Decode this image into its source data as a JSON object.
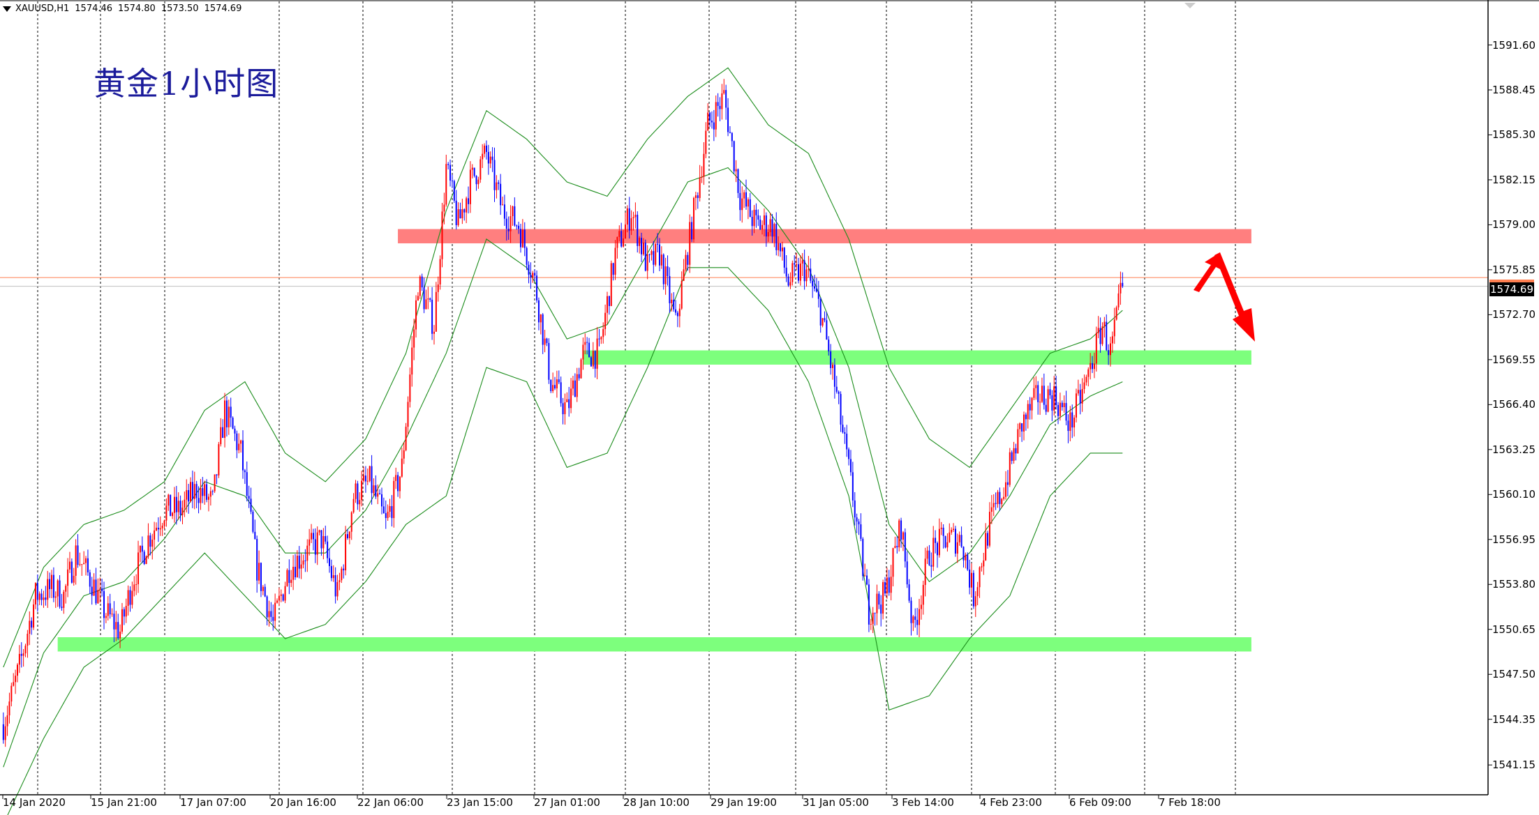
{
  "header": {
    "symbol": "XAUUSD,H1",
    "open": "1574.46",
    "high": "1574.80",
    "low": "1573.50",
    "close": "1574.69"
  },
  "title": "黄金1小时图",
  "current_price_label": "1574.69",
  "colors": {
    "bull_candle": "#ff0000",
    "bear_candle": "#0000ff",
    "bollinger": "#1a8c1a",
    "resistance_zone": "#ff7f7f",
    "support_zone": "#7dff7d",
    "arrow": "#ff0000",
    "grid": "#000000",
    "background": "#ffffff"
  },
  "chart_data": {
    "type": "candlestick",
    "symbol": "XAUUSD",
    "timeframe": "H1",
    "y_axis": {
      "ylim": [
        1539.7,
        1594.2
      ],
      "tick_labels": [
        "1591.60",
        "1588.45",
        "1585.30",
        "1582.15",
        "1579.00",
        "1575.85",
        "1572.70",
        "1569.55",
        "1566.40",
        "1563.25",
        "1560.10",
        "1556.95",
        "1553.80",
        "1550.65",
        "1547.50",
        "1544.35",
        "1541.15"
      ]
    },
    "x_axis": {
      "tick_labels": [
        "14 Jan 2020",
        "15 Jan 21:00",
        "17 Jan 07:00",
        "20 Jan 16:00",
        "22 Jan 06:00",
        "23 Jan 15:00",
        "27 Jan 01:00",
        "28 Jan 10:00",
        "29 Jan 19:00",
        "31 Jan 05:00",
        "3 Feb 14:00",
        "4 Feb 23:00",
        "6 Feb 09:00",
        "7 Feb 18:00"
      ]
    },
    "grid": "vertical-dashed",
    "indicators": [
      "Bollinger Bands"
    ],
    "price_path": [
      [
        0,
        1544
      ],
      [
        8,
        1548
      ],
      [
        16,
        1553
      ],
      [
        24,
        1553.5
      ],
      [
        30,
        1553
      ],
      [
        36,
        1556
      ],
      [
        44,
        1554
      ],
      [
        50,
        1552
      ],
      [
        58,
        1550.5
      ],
      [
        64,
        1554
      ],
      [
        72,
        1557
      ],
      [
        80,
        1559
      ],
      [
        88,
        1559
      ],
      [
        96,
        1560.5
      ],
      [
        104,
        1559.5
      ],
      [
        110,
        1566
      ],
      [
        118,
        1563
      ],
      [
        126,
        1555
      ],
      [
        134,
        1551
      ],
      [
        142,
        1555
      ],
      [
        150,
        1556
      ],
      [
        158,
        1557
      ],
      [
        166,
        1553
      ],
      [
        174,
        1560
      ],
      [
        182,
        1561
      ],
      [
        190,
        1558
      ],
      [
        198,
        1562
      ],
      [
        206,
        1575
      ],
      [
        214,
        1572
      ],
      [
        220,
        1583
      ],
      [
        226,
        1579
      ],
      [
        232,
        1582
      ],
      [
        240,
        1584
      ],
      [
        248,
        1580
      ],
      [
        256,
        1579
      ],
      [
        264,
        1575
      ],
      [
        272,
        1568
      ],
      [
        280,
        1566
      ],
      [
        288,
        1570
      ],
      [
        296,
        1570
      ],
      [
        304,
        1577
      ],
      [
        312,
        1580
      ],
      [
        320,
        1576
      ],
      [
        326,
        1577
      ],
      [
        334,
        1572
      ],
      [
        342,
        1579
      ],
      [
        350,
        1586
      ],
      [
        358,
        1588
      ],
      [
        366,
        1581
      ],
      [
        374,
        1579
      ],
      [
        382,
        1579
      ],
      [
        390,
        1575
      ],
      [
        398,
        1576
      ],
      [
        406,
        1573
      ],
      [
        414,
        1567
      ],
      [
        422,
        1560
      ],
      [
        430,
        1552
      ],
      [
        438,
        1553
      ],
      [
        446,
        1558
      ],
      [
        452,
        1550.5
      ],
      [
        460,
        1556
      ],
      [
        468,
        1557
      ],
      [
        476,
        1557
      ],
      [
        482,
        1553
      ],
      [
        490,
        1558
      ],
      [
        498,
        1561
      ],
      [
        506,
        1565
      ],
      [
        514,
        1567
      ],
      [
        522,
        1567
      ],
      [
        530,
        1565
      ],
      [
        538,
        1568
      ],
      [
        546,
        1572
      ],
      [
        550,
        1570
      ],
      [
        556,
        1574.7
      ]
    ],
    "bollinger_mid": [
      [
        0,
        1541
      ],
      [
        20,
        1549
      ],
      [
        40,
        1553
      ],
      [
        60,
        1554
      ],
      [
        80,
        1557
      ],
      [
        100,
        1561
      ],
      [
        120,
        1560
      ],
      [
        140,
        1556
      ],
      [
        160,
        1556
      ],
      [
        180,
        1559
      ],
      [
        200,
        1564
      ],
      [
        220,
        1570
      ],
      [
        240,
        1578
      ],
      [
        260,
        1576
      ],
      [
        280,
        1571
      ],
      [
        300,
        1572
      ],
      [
        320,
        1577
      ],
      [
        340,
        1582
      ],
      [
        360,
        1583
      ],
      [
        380,
        1580
      ],
      [
        400,
        1576
      ],
      [
        420,
        1569
      ],
      [
        440,
        1558
      ],
      [
        460,
        1554
      ],
      [
        480,
        1556
      ],
      [
        500,
        1560
      ],
      [
        520,
        1565
      ],
      [
        540,
        1567
      ],
      [
        556,
        1568
      ]
    ],
    "bollinger_upper": [
      [
        0,
        1548
      ],
      [
        20,
        1555
      ],
      [
        40,
        1558
      ],
      [
        60,
        1559
      ],
      [
        80,
        1561
      ],
      [
        100,
        1566
      ],
      [
        120,
        1568
      ],
      [
        140,
        1563
      ],
      [
        160,
        1561
      ],
      [
        180,
        1564
      ],
      [
        200,
        1570
      ],
      [
        220,
        1580
      ],
      [
        240,
        1587
      ],
      [
        260,
        1585
      ],
      [
        280,
        1582
      ],
      [
        300,
        1581
      ],
      [
        320,
        1585
      ],
      [
        340,
        1588
      ],
      [
        360,
        1590
      ],
      [
        380,
        1586
      ],
      [
        400,
        1584
      ],
      [
        420,
        1578
      ],
      [
        440,
        1569
      ],
      [
        460,
        1564
      ],
      [
        480,
        1562
      ],
      [
        500,
        1566
      ],
      [
        520,
        1570
      ],
      [
        540,
        1571
      ],
      [
        556,
        1573
      ]
    ],
    "bollinger_lower": [
      [
        0,
        1537
      ],
      [
        20,
        1543
      ],
      [
        40,
        1548
      ],
      [
        60,
        1550
      ],
      [
        80,
        1553
      ],
      [
        100,
        1556
      ],
      [
        120,
        1553
      ],
      [
        140,
        1550
      ],
      [
        160,
        1551
      ],
      [
        180,
        1554
      ],
      [
        200,
        1558
      ],
      [
        220,
        1560
      ],
      [
        240,
        1569
      ],
      [
        260,
        1568
      ],
      [
        280,
        1562
      ],
      [
        300,
        1563
      ],
      [
        320,
        1569
      ],
      [
        340,
        1576
      ],
      [
        360,
        1576
      ],
      [
        380,
        1573
      ],
      [
        400,
        1568
      ],
      [
        420,
        1560
      ],
      [
        440,
        1545
      ],
      [
        460,
        1546
      ],
      [
        480,
        1550
      ],
      [
        500,
        1553
      ],
      [
        520,
        1560
      ],
      [
        540,
        1563
      ],
      [
        556,
        1563
      ]
    ],
    "zones": [
      {
        "type": "resistance",
        "from": 1577.7,
        "to": 1578.7,
        "x_start": 196,
        "x_end": 620
      },
      {
        "type": "support",
        "from": 1569.2,
        "to": 1570.2,
        "x_start": 288,
        "x_end": 620
      },
      {
        "type": "support",
        "from": 1549.1,
        "to": 1550.1,
        "x_start": 27,
        "x_end": 620
      }
    ],
    "horizontal_lines": [
      {
        "price": 1575.3,
        "color": "#ff7f50"
      }
    ]
  }
}
